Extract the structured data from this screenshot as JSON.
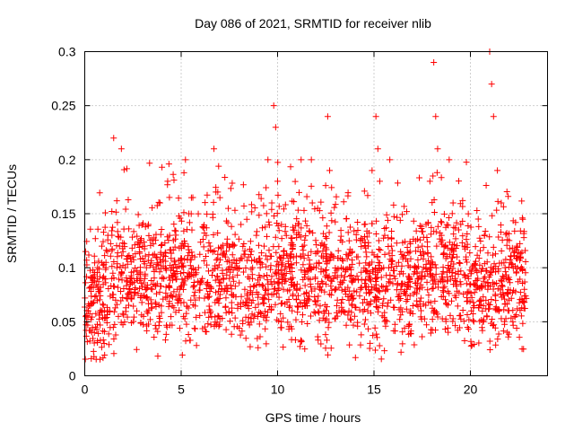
{
  "chart_data": {
    "type": "scatter",
    "title": "Day 086 of 2021, SRMTID for receiver nlib",
    "xlabel": "GPS time / hours",
    "ylabel": "SRMTID / TECUs",
    "xlim": [
      0,
      24
    ],
    "ylim": [
      0,
      0.3
    ],
    "x_ticks": [
      0,
      5,
      10,
      15,
      20
    ],
    "x_tick_labels": [
      "0",
      "5",
      "10",
      "15",
      "20"
    ],
    "y_ticks": [
      0,
      0.05,
      0.1,
      0.15,
      0.2,
      0.25,
      0.3
    ],
    "y_tick_labels": [
      "0",
      "0.05",
      "0.1",
      "0.15",
      "0.2",
      "0.25",
      "0.3"
    ],
    "grid": true,
    "marker": "plus",
    "color": "#ff0000",
    "series": [
      {
        "name": "SRMTID",
        "x": [
          0.1,
          0.3,
          0.5,
          0.7,
          0.9,
          1.1,
          1.2,
          1.4,
          1.5,
          1.6,
          1.8,
          1.9,
          2.1,
          2.3,
          2.5,
          2.7,
          2.9,
          3.1,
          3.2,
          3.3,
          3.5,
          3.7,
          3.9,
          4.1,
          4.3,
          4.4,
          4.6,
          4.8,
          5.0,
          5.2,
          5.4,
          5.5,
          5.7,
          5.9,
          6.1,
          6.3,
          6.5,
          6.7,
          6.8,
          6.9,
          7.1,
          7.3,
          7.5,
          7.7,
          7.9,
          8.1,
          8.3,
          8.5,
          8.7,
          8.9,
          9.1,
          9.3,
          9.5,
          9.7,
          9.8,
          9.9,
          10.0,
          10.1,
          10.2,
          10.4,
          10.6,
          10.8,
          11.0,
          11.2,
          11.4,
          11.6,
          11.8,
          12.0,
          12.2,
          12.4,
          12.6,
          12.7,
          12.9,
          13.1,
          13.3,
          13.5,
          13.7,
          13.9,
          14.1,
          14.3,
          14.5,
          14.7,
          14.9,
          15.1,
          15.2,
          15.3,
          15.5,
          15.7,
          15.9,
          16.1,
          16.3,
          16.5,
          16.7,
          16.9,
          17.1,
          17.3,
          17.5,
          17.7,
          17.9,
          18.1,
          18.2,
          18.3,
          18.5,
          18.7,
          18.9,
          19.1,
          19.3,
          19.5,
          19.7,
          19.9,
          20.1,
          20.3,
          20.5,
          20.7,
          20.9,
          21.0,
          21.1,
          21.2,
          21.4,
          21.6,
          21.8,
          22.0,
          22.2,
          22.4,
          22.6,
          22.8
        ],
        "y": [
          0.05,
          0.065,
          0.04,
          0.08,
          0.06,
          0.1,
          0.13,
          0.09,
          0.22,
          0.07,
          0.12,
          0.21,
          0.1,
          0.08,
          0.11,
          0.06,
          0.09,
          0.12,
          0.1,
          0.14,
          0.08,
          0.11,
          0.16,
          0.09,
          0.18,
          0.13,
          0.1,
          0.08,
          0.12,
          0.09,
          0.15,
          0.07,
          0.11,
          0.1,
          0.09,
          0.13,
          0.12,
          0.21,
          0.17,
          0.1,
          0.08,
          0.11,
          0.09,
          0.12,
          0.1,
          0.14,
          0.08,
          0.11,
          0.09,
          0.13,
          0.1,
          0.12,
          0.2,
          0.16,
          0.25,
          0.23,
          0.18,
          0.11,
          0.14,
          0.09,
          0.1,
          0.12,
          0.08,
          0.11,
          0.07,
          0.09,
          0.16,
          0.1,
          0.08,
          0.12,
          0.24,
          0.19,
          0.09,
          0.07,
          0.1,
          0.08,
          0.06,
          0.09,
          0.11,
          0.08,
          0.14,
          0.12,
          0.19,
          0.24,
          0.21,
          0.18,
          0.1,
          0.08,
          0.12,
          0.09,
          0.07,
          0.11,
          0.08,
          0.06,
          0.1,
          0.09,
          0.12,
          0.14,
          0.18,
          0.29,
          0.24,
          0.21,
          0.13,
          0.12,
          0.2,
          0.16,
          0.11,
          0.14,
          0.12,
          0.09,
          0.1,
          0.08,
          0.07,
          0.09,
          0.08,
          0.3,
          0.27,
          0.24,
          0.19,
          0.16,
          0.1,
          0.07,
          0.05,
          0.12,
          0.11,
          0.08
        ]
      }
    ],
    "background_cloud": {
      "density_per_hour": 95,
      "baseline_mean": 0.09,
      "spread": 0.028
    }
  }
}
